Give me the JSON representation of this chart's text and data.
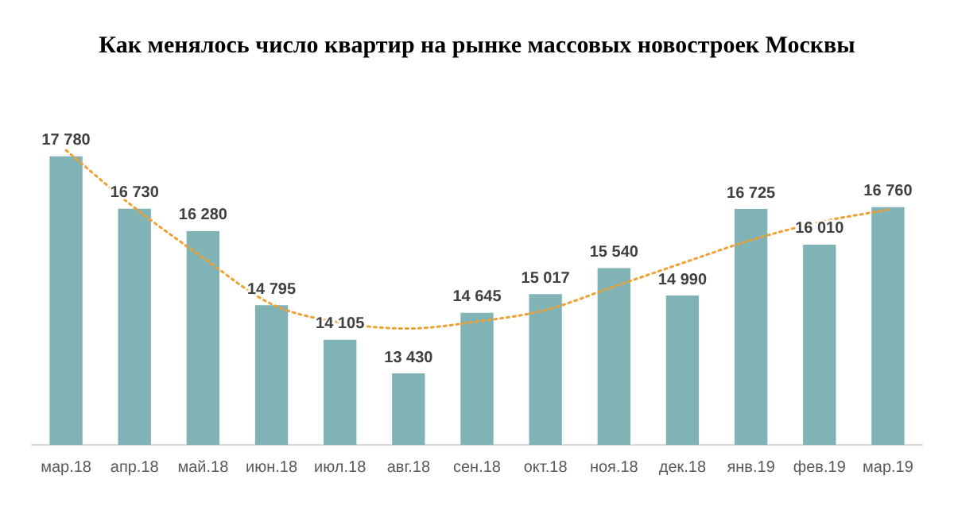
{
  "chart_data": {
    "type": "bar",
    "title": "Как менялось число квартир на рынке массовых новостроек Москвы",
    "categories": [
      "мар.18",
      "апр.18",
      "май.18",
      "июн.18",
      "июл.18",
      "авг.18",
      "сен.18",
      "окт.18",
      "ноя.18",
      "дек.18",
      "янв.19",
      "фев.19",
      "мар.19"
    ],
    "series": [
      {
        "color": "#7fb3b5",
        "values": [
          17780,
          16730,
          16280,
          14795,
          14105,
          13430,
          14645,
          15017,
          15540,
          14990,
          16725,
          16010,
          16760
        ],
        "value_labels": [
          "17 780",
          "16 730",
          "16 280",
          "14 795",
          "14 105",
          "13 430",
          "14 645",
          "15 017",
          "15 540",
          "14 990",
          "16 725",
          "16 010",
          "16 760"
        ]
      },
      {
        "type": "line",
        "color": "#f0a030",
        "line_style": "dotted",
        "marker": "none",
        "x": [
          "мар.18",
          "апр.18",
          "май.18",
          "июн.18",
          "июл.18",
          "авг.18",
          "сен.18",
          "окт.18",
          "ноя.18",
          "дек.18",
          "янв.19",
          "фев.19",
          "мар.19"
        ],
        "values": [
          17900,
          16750,
          15750,
          14820,
          14450,
          14330,
          14470,
          14700,
          15170,
          15640,
          16100,
          16460,
          16710
        ]
      }
    ],
    "tick_labels": "x",
    "legend": false,
    "grid": false
  }
}
